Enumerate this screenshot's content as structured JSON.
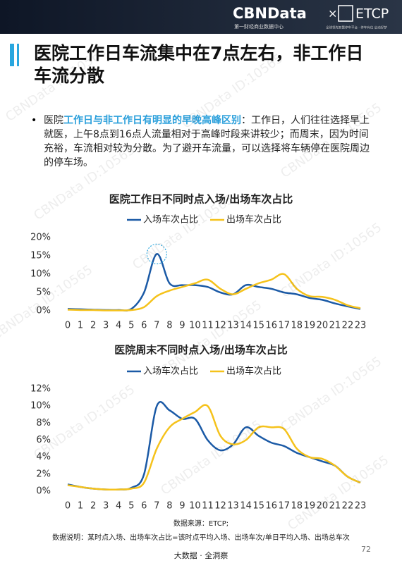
{
  "header": {
    "brand": "CBNData",
    "cross": "×",
    "partner": "ETCP",
    "brand_sub": "第一财经商业数据中心",
    "partner_sub": "全球领先智慧停车平台 · 停车有位 启动好梦"
  },
  "title": "医院工作日车流集中在7点左右，非工作日车流分散",
  "bullet": {
    "lead": "医院",
    "highlight": "工作日与非工作日有明显的早晚高峰区别",
    "rest": "：工作日，人们往往选择早上就医，上午8点到16点人流量相对于高峰时段来讲较少；而周末，因为时间充裕，车流相对较为分散。为了避开车流量，可以选择将车辆停在医院周边的停车场。"
  },
  "chart_data": [
    {
      "type": "line",
      "title": "医院工作日不同时点入场/出场车次占比",
      "categories": [
        "0",
        "1",
        "2",
        "3",
        "4",
        "5",
        "6",
        "7",
        "8",
        "9",
        "10",
        "11",
        "12",
        "13",
        "14",
        "15",
        "16",
        "17",
        "18",
        "19",
        "20",
        "21",
        "22",
        "23"
      ],
      "series": [
        {
          "name": "入场车次占比",
          "color": "#1b5aa6",
          "values": [
            0.5,
            0.4,
            0.3,
            0.2,
            0.2,
            0.5,
            5,
            15.5,
            7.5,
            7,
            7,
            6.5,
            5,
            4.5,
            7,
            6.5,
            6,
            5,
            4.5,
            3.5,
            3,
            2,
            1.2,
            0.5
          ]
        },
        {
          "name": "出场车次占比",
          "color": "#f5c21b",
          "values": [
            0.3,
            0.2,
            0.2,
            0.1,
            0.1,
            0.2,
            1,
            4,
            5.5,
            6.5,
            7.5,
            8.5,
            6,
            4.5,
            6,
            7.5,
            8.5,
            10,
            6,
            4,
            3.8,
            3,
            1.5,
            0.7
          ]
        }
      ],
      "ylim": [
        0,
        20
      ],
      "yticks": [
        {
          "value": 0,
          "label": "0%"
        },
        {
          "value": 5,
          "label": "5%"
        },
        {
          "value": 10,
          "label": "10%"
        },
        {
          "value": 15,
          "label": "15%"
        },
        {
          "value": 20,
          "label": "20%"
        }
      ],
      "legend": "top"
    },
    {
      "type": "line",
      "title": "医院周末不同时点入场/出场车次占比",
      "categories": [
        "0",
        "1",
        "2",
        "3",
        "4",
        "5",
        "6",
        "7",
        "8",
        "9",
        "10",
        "11",
        "12",
        "13",
        "14",
        "15",
        "16",
        "17",
        "18",
        "19",
        "20",
        "21",
        "22",
        "23"
      ],
      "series": [
        {
          "name": "入场车次占比",
          "color": "#1b5aa6",
          "values": [
            0.8,
            0.5,
            0.3,
            0.2,
            0.2,
            0.4,
            2,
            10,
            9.5,
            8.5,
            8.5,
            6,
            4.8,
            5.5,
            7.5,
            6.5,
            5.7,
            5.3,
            4.5,
            4,
            3.5,
            3,
            1.7,
            1
          ]
        },
        {
          "name": "出场车次占比",
          "color": "#f5c21b",
          "values": [
            0.7,
            0.5,
            0.3,
            0.2,
            0.2,
            0.3,
            1,
            5,
            7.5,
            8.5,
            9.3,
            10,
            6.5,
            5.5,
            6,
            7.5,
            7.5,
            7.3,
            5,
            4,
            3.8,
            3,
            1.7,
            1
          ]
        }
      ],
      "ylim": [
        0,
        12
      ],
      "yticks": [
        {
          "value": 0,
          "label": "0%"
        },
        {
          "value": 2,
          "label": "2%"
        },
        {
          "value": 4,
          "label": "4%"
        },
        {
          "value": 6,
          "label": "6%"
        },
        {
          "value": 8,
          "label": "8%"
        },
        {
          "value": 10,
          "label": "10%"
        },
        {
          "value": 12,
          "label": "12%"
        }
      ],
      "legend": "top"
    }
  ],
  "source": "数据来源：ETCP;",
  "note": "数据说明：某时点入场、出场车次占比=该时点平均入场、出场车次/单日平均入场、出场总车次",
  "footer": "大数据 · 全洞察",
  "page_number": "72",
  "watermark": "CBNData ID:10565"
}
